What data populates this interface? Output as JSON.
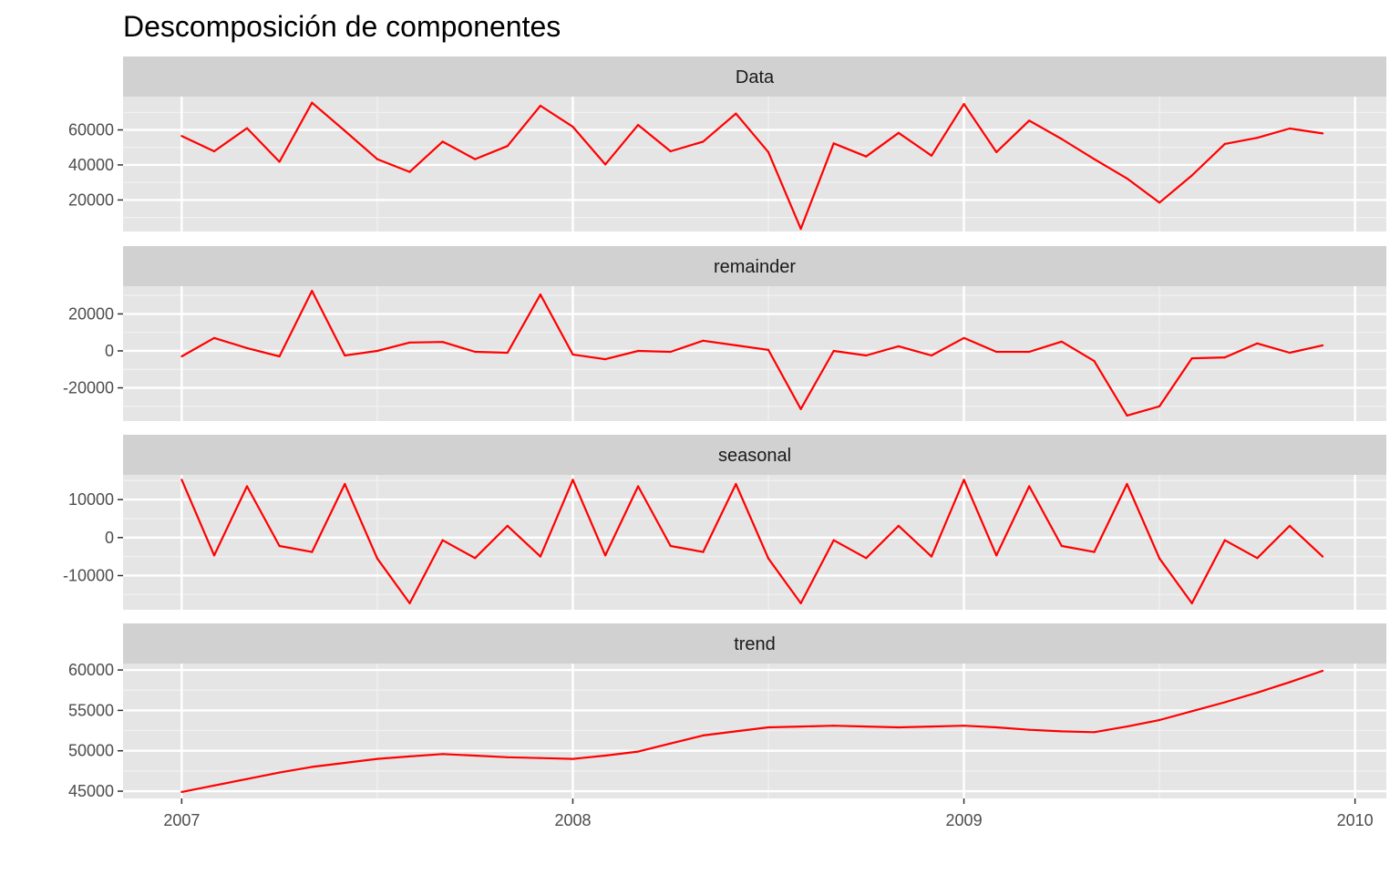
{
  "chart_data": {
    "type": "line",
    "title": "Descomposición de componentes",
    "xlabel": "",
    "ylabel": "",
    "x_range": [
      2006.85,
      2010.08
    ],
    "x_ticks": [
      2007,
      2008,
      2009,
      2010
    ],
    "x": [
      2007.0,
      2007.083,
      2007.167,
      2007.25,
      2007.333,
      2007.417,
      2007.5,
      2007.583,
      2007.667,
      2007.75,
      2007.833,
      2007.917,
      2008.0,
      2008.083,
      2008.167,
      2008.25,
      2008.333,
      2008.417,
      2008.5,
      2008.583,
      2008.667,
      2008.75,
      2008.833,
      2008.917,
      2009.0,
      2009.083,
      2009.167,
      2009.25,
      2009.333,
      2009.417,
      2009.5,
      2009.583,
      2009.667,
      2009.75,
      2009.833,
      2009.917
    ],
    "line_color": "#FF0000",
    "panel_background": "#E5E5E5",
    "strip_background": "#D1D1D1",
    "grid": true,
    "panels": [
      {
        "name": "Data",
        "ylim": [
          2000,
          79000
        ],
        "y_ticks": [
          20000,
          40000,
          60000
        ],
        "y_tick_labels": [
          "20000",
          "40000",
          "60000"
        ],
        "values": [
          56500,
          47800,
          61000,
          41800,
          75500,
          59500,
          43300,
          36000,
          53300,
          43300,
          50800,
          73800,
          61800,
          40300,
          62800,
          47800,
          53300,
          69300,
          47300,
          3500,
          52300,
          44800,
          58300,
          45300,
          74800,
          47300,
          65300,
          54800,
          43300,
          32300,
          18500,
          34000,
          52000,
          55500,
          60800,
          58000
        ]
      },
      {
        "name": "remainder",
        "ylim": [
          -38000,
          35000
        ],
        "y_ticks": [
          -20000,
          0,
          20000
        ],
        "y_tick_labels": [
          "-20000",
          "0",
          "20000"
        ],
        "values": [
          -3000,
          7000,
          1500,
          -3000,
          32500,
          -2500,
          0,
          4500,
          4800,
          -500,
          -1000,
          30500,
          -2000,
          -4500,
          0,
          -500,
          5500,
          3000,
          500,
          -31500,
          0,
          -2500,
          2500,
          -2500,
          7000,
          -500,
          -500,
          5000,
          -5500,
          -35000,
          -30000,
          -4000,
          -3500,
          4000,
          -1000,
          3000
        ]
      },
      {
        "name": "seasonal",
        "ylim": [
          -19000,
          16500
        ],
        "y_ticks": [
          -10000,
          0,
          10000
        ],
        "y_tick_labels": [
          "-10000",
          "0",
          "10000"
        ],
        "values": [
          15200,
          -4700,
          13500,
          -2200,
          -3800,
          14100,
          -5500,
          -17300,
          -700,
          -5400,
          3100,
          -5000,
          15200,
          -4700,
          13500,
          -2200,
          -3800,
          14100,
          -5500,
          -17300,
          -700,
          -5400,
          3100,
          -5000,
          15200,
          -4700,
          13500,
          -2200,
          -3800,
          14100,
          -5500,
          -17300,
          -700,
          -5400,
          3100,
          -5000
        ]
      },
      {
        "name": "trend",
        "ylim": [
          44100,
          60800
        ],
        "y_ticks": [
          45000,
          50000,
          55000,
          60000
        ],
        "y_tick_labels": [
          "45000",
          "50000",
          "55000",
          "60000"
        ],
        "values": [
          44900,
          45700,
          46500,
          47300,
          48000,
          48500,
          49000,
          49300,
          49600,
          49400,
          49200,
          49100,
          49000,
          49400,
          49900,
          50900,
          51900,
          52400,
          52900,
          53000,
          53100,
          53000,
          52900,
          53000,
          53100,
          52900,
          52600,
          52400,
          52300,
          53000,
          53800,
          54900,
          56000,
          57200,
          58500,
          59900
        ]
      }
    ]
  }
}
